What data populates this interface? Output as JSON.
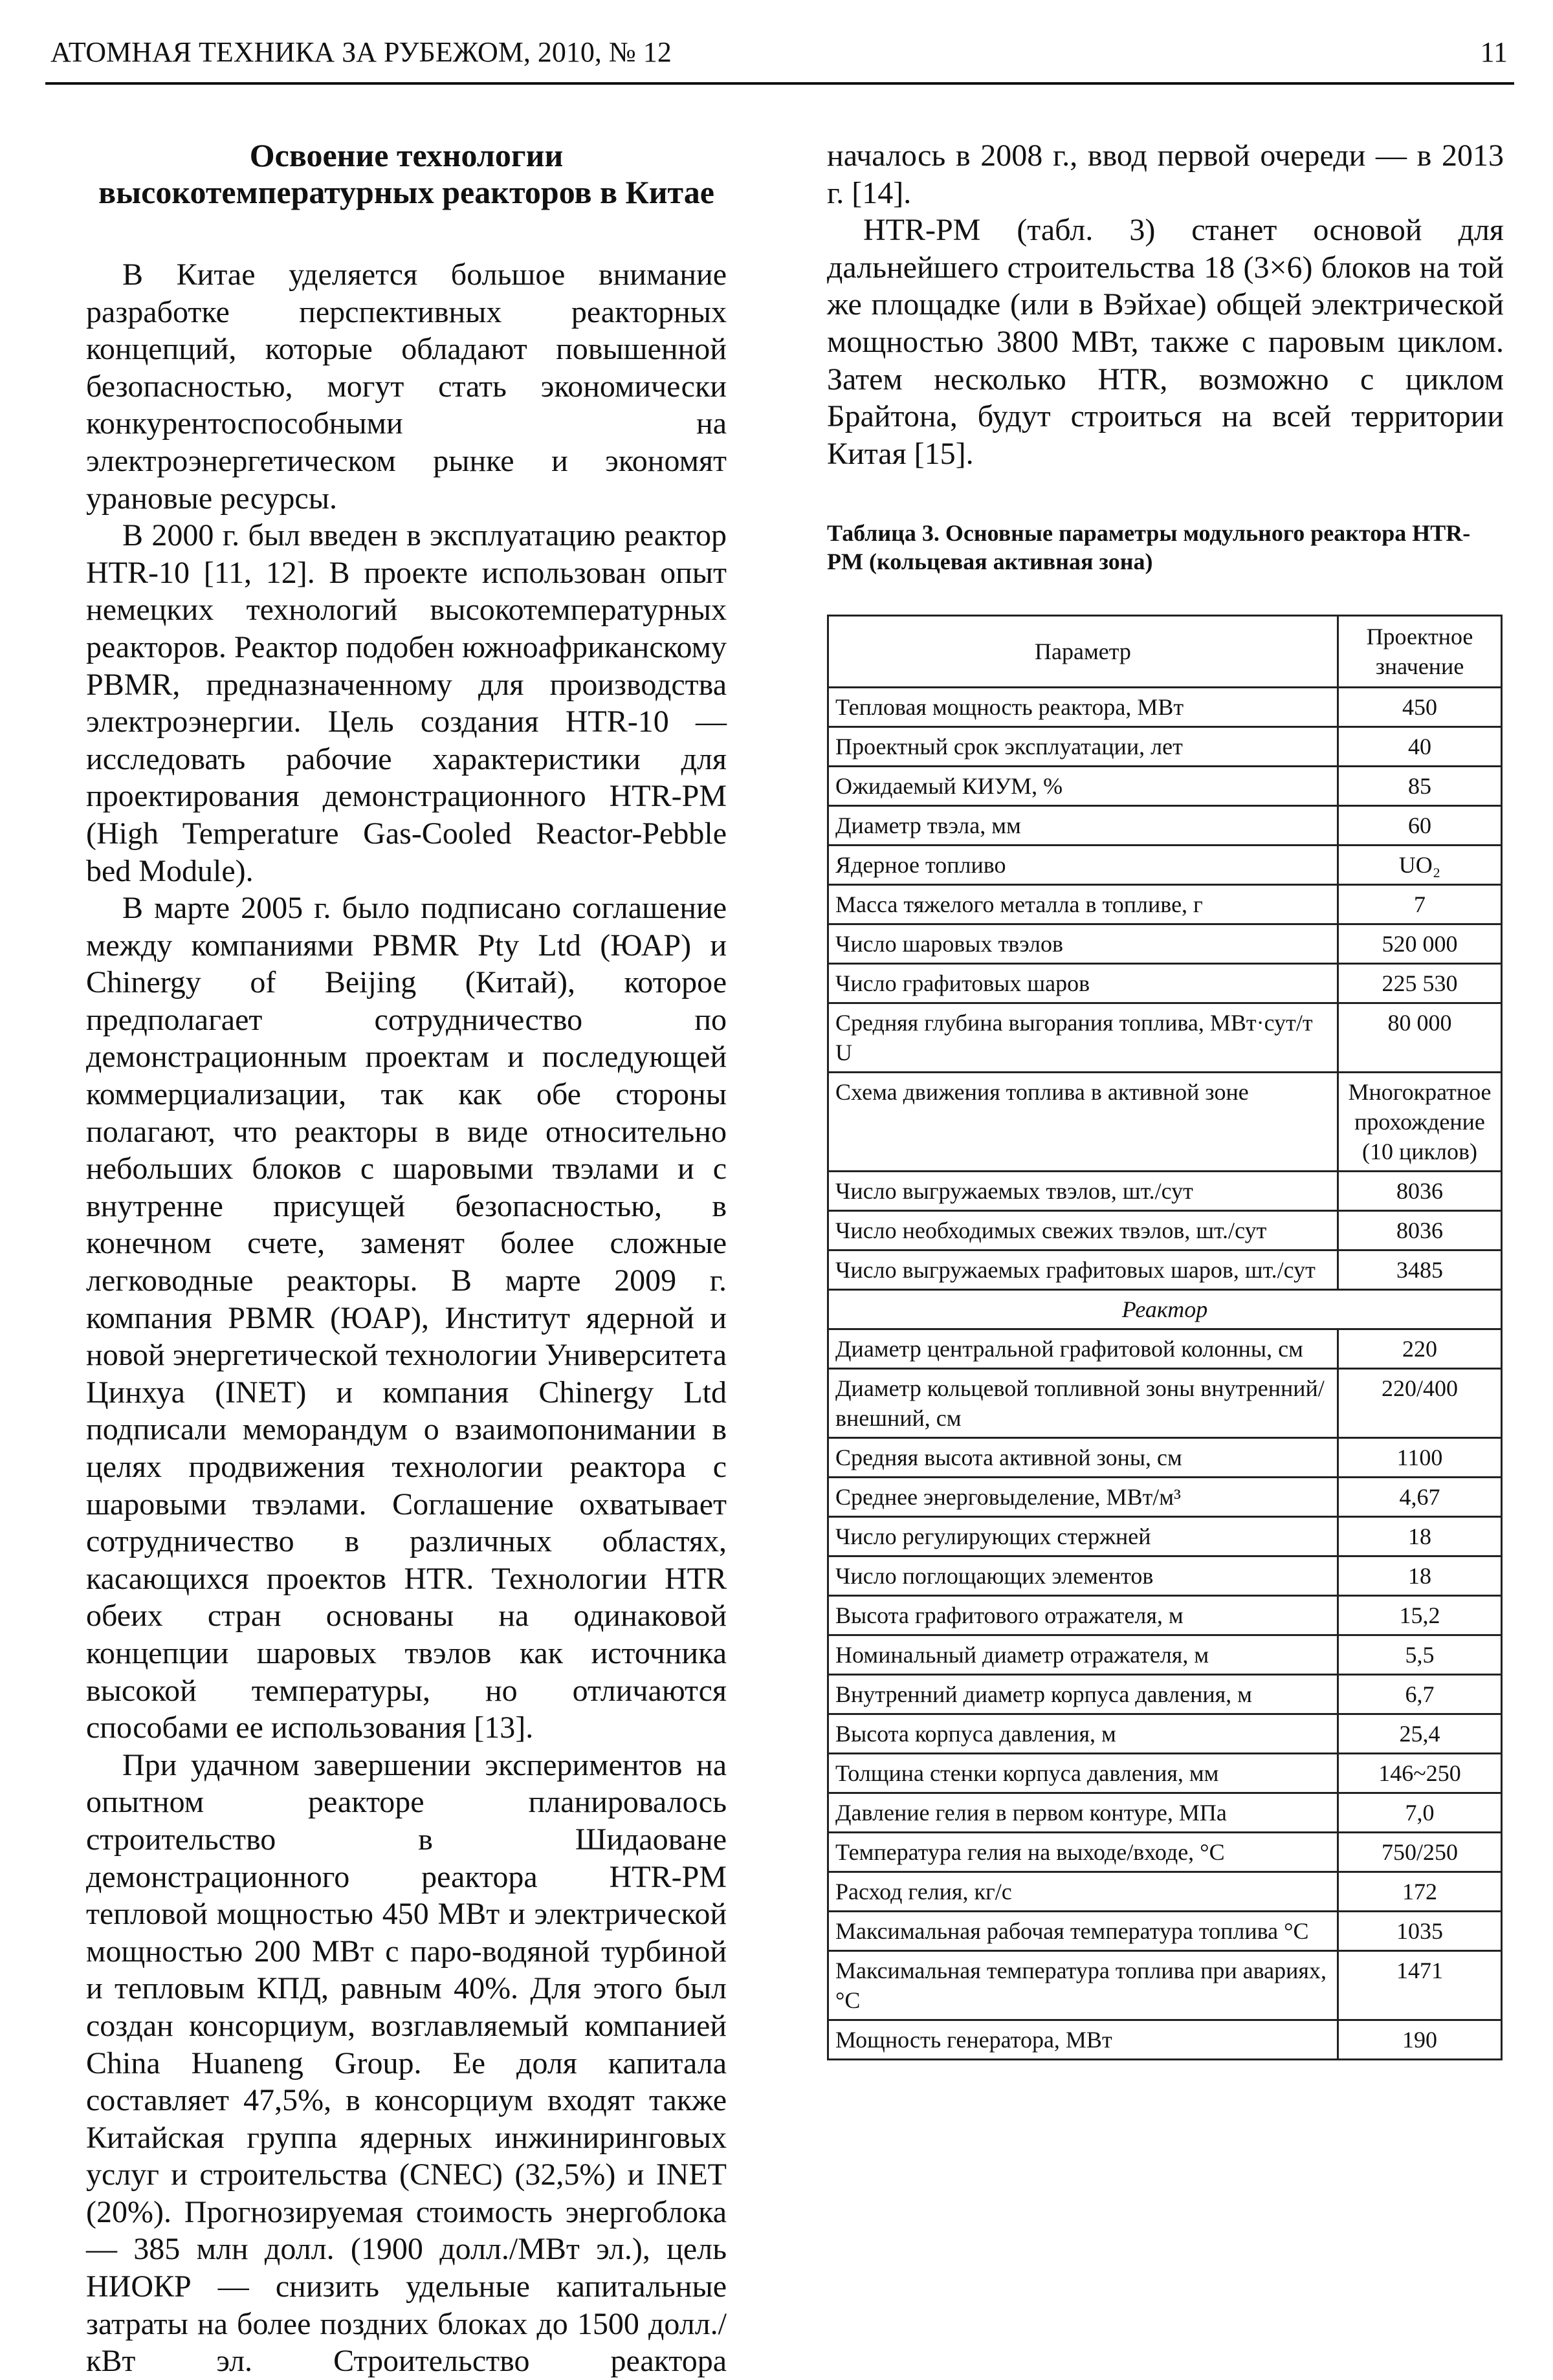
{
  "header": {
    "journal": "АТОМНАЯ ТЕХНИКА ЗА РУБЕЖОМ, 2010, № 12",
    "page_number": "11"
  },
  "article": {
    "title": [
      "Освоение технологии",
      "высокотемпературных реакторов в Китае"
    ],
    "left_column": [
      "В Китае уделяется большое внимание разработке перспективных реакторных концепций, которые обладают повышенной безопасностью, могут стать экономически конкурентоспособными на электроэнергетическом рынке и экономят урановые ресурсы.",
      "В 2000 г. был введен в эксплуатацию реактор HTR-10 [11, 12]. В проекте использован опыт немецких технологий высокотемпературных реакторов. Реактор подобен южноафриканскому PBMR, предназначенному для производства электроэнергии. Цель создания HTR-10 — исследовать рабочие характеристики для проектирования демонстрационного HTR-PM (High Temperature Gas-Cooled Reactor-Pebble bed Module).",
      "В марте 2005 г. было подписано соглашение между компаниями PBMR Pty Ltd (ЮАР) и Chinergy of Beijing (Китай), которое предполагает сотрудничество по демонстрационным проектам и последующей коммерциализации, так как обе стороны полагают, что реакторы в виде относительно небольших блоков с шаровыми твэлами и с внутренне присущей безопасностью, в конечном счете, заменят более сложные легководные реакторы. В марте 2009 г. компания PBMR (ЮАР), Институт ядерной и новой энергетической технологии Университета Цинхуа (INET) и компания Chinergy Ltd подписали меморандум о взаимопонимании в целях продвижения технологии реактора с шаровыми твэлами. Соглашение охватывает сотрудничество в различных областях, касающихся проектов HTR. Технологии HTR обеих стран основаны на одинаковой концепции шаровых твэлов как источника высокой температуры, но отличаются способами ее использования [13].",
      "При удачном завершении экспериментов на опытном реакторе планировалось строительство в Шидаоване демонстрационного реактора HTR-PM тепловой мощностью 450 МВт и электрической мощностью 200 МВт с паро-водяной турбиной и тепловым КПД, равным 40%. Для этого был создан консорциум, возглавляемый компанией China Huaneng Group. Ее доля капитала составляет 47,5%, в консорциум входят также Китайская группа ядерных инжиниринговых услуг и строительства (CNEC) (32,5%) и INET (20%). Прогнозируемая стоимость энергоблока — 385 млн долл. (1900 долл./МВт эл.), цель НИОКР — снизить удельные капитальные затраты на более поздних блоках до 1500 долл./кВт эл. Строительство реактора"
    ],
    "right_column": [
      "началось в 2008 г., ввод первой очереди — в 2013 г. [14].",
      "HTR-PM (табл. 3) станет основой для дальнейшего строительства 18 (3×6) блоков на той же площадке (или в Вэйхае) общей электрической мощностью 3800 МВт, также с паровым циклом. Затем несколько HTR, возможно с циклом Брайтона, будут строиться на всей территории Китая [15]."
    ]
  },
  "table": {
    "caption": "Таблица 3. Основные параметры модульного реактора HTR-PM (кольцевая активная зона)",
    "columns": [
      "Параметр",
      "Проектное значение"
    ],
    "rows": [
      [
        "Тепловая мощность реактора, МВт",
        "450"
      ],
      [
        "Проектный срок эксплуатации, лет",
        "40"
      ],
      [
        "Ожидаемый КИУМ, %",
        "85"
      ],
      [
        "Диаметр твэла, мм",
        "60"
      ],
      [
        "Ядерное топливо",
        "UO₂"
      ],
      [
        "Масса тяжелого металла в топливе, г",
        "7"
      ],
      [
        "Число шаровых твэлов",
        "520 000"
      ],
      [
        "Число графитовых шаров",
        "225 530"
      ],
      [
        "Средняя глубина выгорания топлива, МВт·сут/т U",
        "80 000"
      ],
      [
        "Схема движения топлива в активной зоне",
        "Многократное прохождение (10 циклов)"
      ],
      [
        "Число выгружаемых твэлов, шт./сут",
        "8036"
      ],
      [
        "Число необходимых свежих твэлов, шт./сут",
        "8036"
      ],
      [
        "Число выгружаемых графитовых шаров, шт./сут",
        "3485"
      ],
      [
        "Реактор"
      ],
      [
        "Диаметр центральной графитовой колонны, см",
        "220"
      ],
      [
        "Диаметр кольцевой топливной зоны внутренний/внешний, см",
        "220/400"
      ],
      [
        "Средняя высота активной зоны, см",
        "1100"
      ],
      [
        "Среднее энерговыделение, МВт/м³",
        "4,67"
      ],
      [
        "Число регулирующих стержней",
        "18"
      ],
      [
        "Число поглощающих элементов",
        "18"
      ],
      [
        "Высота графитового отражателя, м",
        "15,2"
      ],
      [
        "Номинальный диаметр отражателя, м",
        "5,5"
      ],
      [
        "Внутренний диаметр корпуса давления, м",
        "6,7"
      ],
      [
        "Высота корпуса давления, м",
        "25,4"
      ],
      [
        "Толщина стенки корпуса давления, мм",
        "146~250"
      ],
      [
        "Давление гелия в первом контуре, МПа",
        "7,0"
      ],
      [
        "Температура гелия на выходе/входе, °C",
        "750/250"
      ],
      [
        "Расход гелия, кг/с",
        "172"
      ],
      [
        "Максимальная рабочая температура топлива °C",
        "1035"
      ],
      [
        "Максимальная температура топлива при авариях, °C",
        "1471"
      ],
      [
        "Мощность генератора, МВт",
        "190"
      ]
    ]
  }
}
